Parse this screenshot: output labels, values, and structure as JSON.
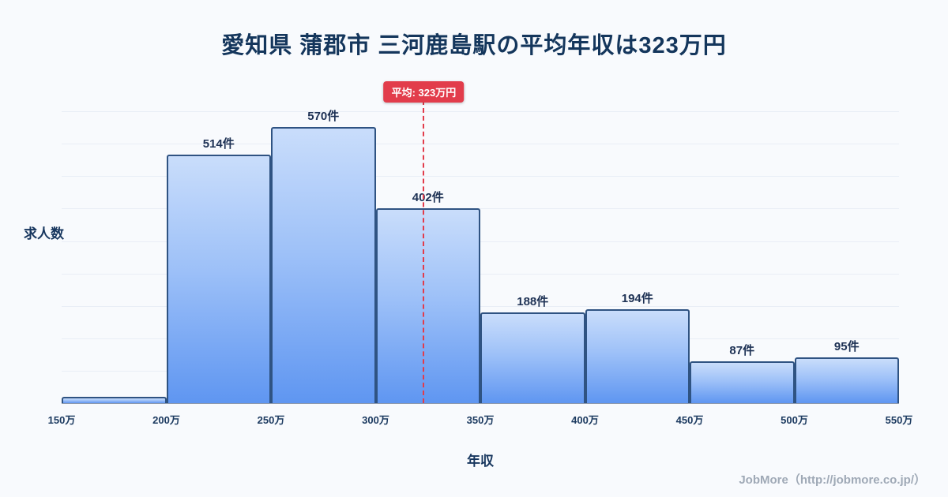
{
  "title": "愛知県 蒲郡市 三河鹿島駅の平均年収は323万円",
  "footer": "JobMore（http://jobmore.co.jp/）",
  "colors": {
    "background": "#f8fafd",
    "title_text": "#14365c",
    "bar_border": "#2f5382",
    "bar_gradient_top": "#c9ddfb",
    "bar_gradient_bottom": "#5f96f1",
    "average_accent": "#e23c4b",
    "footer_text": "#9fa9b6"
  },
  "chart_data": {
    "type": "bar",
    "title": "愛知県 蒲郡市 三河鹿島駅の平均年収は323万円",
    "xlabel": "年収",
    "ylabel": "求人数",
    "xlim": [
      150,
      550
    ],
    "ylim": [
      0,
      670
    ],
    "grid": "horizontal-faint",
    "x_ticks": [
      "150万",
      "200万",
      "250万",
      "300万",
      "350万",
      "400万",
      "450万",
      "500万",
      "550万"
    ],
    "bins": [
      {
        "range": [
          150,
          200
        ],
        "value": 13,
        "label": ""
      },
      {
        "range": [
          200,
          250
        ],
        "value": 514,
        "label": "514件"
      },
      {
        "range": [
          250,
          300
        ],
        "value": 570,
        "label": "570件"
      },
      {
        "range": [
          300,
          350
        ],
        "value": 402,
        "label": "402件"
      },
      {
        "range": [
          350,
          400
        ],
        "value": 188,
        "label": "188件"
      },
      {
        "range": [
          400,
          450
        ],
        "value": 194,
        "label": "194件"
      },
      {
        "range": [
          450,
          500
        ],
        "value": 87,
        "label": "87件"
      },
      {
        "range": [
          500,
          550
        ],
        "value": 95,
        "label": "95件"
      }
    ],
    "average": {
      "value": 323,
      "label": "平均: 323万円"
    }
  }
}
